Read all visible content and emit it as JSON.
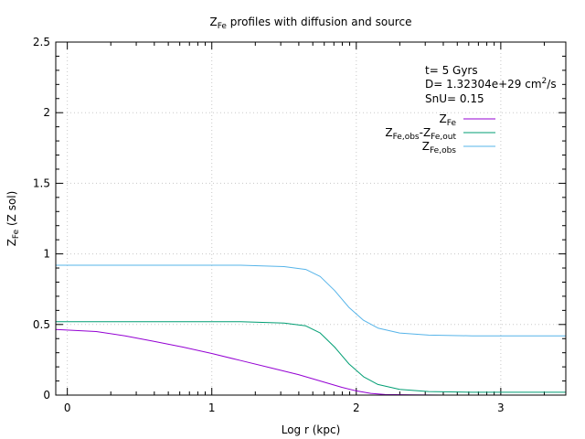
{
  "chart_data": {
    "type": "line",
    "title": {
      "main": "Z",
      "sub": "Fe",
      "rest": " profiles with diffusion and source"
    },
    "xlabel": "Log r (kpc)",
    "ylabel": {
      "main": "Z",
      "sub": "Fe",
      "rest": " (Z sol)"
    },
    "xlim": [
      -0.08,
      3.45
    ],
    "ylim": [
      0,
      2.5
    ],
    "grid": true,
    "x_ticks": [
      0,
      1,
      2,
      3
    ],
    "x_tick_labels": [
      "0",
      "1",
      "2",
      "3"
    ],
    "y_ticks": [
      0,
      0.5,
      1,
      1.5,
      2,
      2.5
    ],
    "y_tick_labels": [
      "0",
      "0.5",
      "1",
      "1.5",
      "2",
      "2.5"
    ],
    "annotations": {
      "time": "t= 5 Gyrs",
      "diffusion_prefix": "D= 1.32304e+29 cm",
      "diffusion_sup": "2",
      "diffusion_suffix": "/s",
      "snu": "SnU= 0.15"
    },
    "legend_position": "top-right",
    "series": [
      {
        "name": "Z_Fe",
        "label_parts": [
          {
            "t": "Z",
            "s": "n"
          },
          {
            "t": "Fe",
            "s": "sub"
          }
        ],
        "color": "#9400d3",
        "x": [
          -0.08,
          0.2,
          0.4,
          0.6,
          0.8,
          1.0,
          1.2,
          1.4,
          1.6,
          1.8,
          1.9,
          2.0,
          2.1,
          2.2,
          2.4,
          2.6,
          3.0,
          3.45
        ],
        "y": [
          0.465,
          0.45,
          0.42,
          0.38,
          0.34,
          0.295,
          0.245,
          0.195,
          0.145,
          0.085,
          0.055,
          0.03,
          0.012,
          0.004,
          0.001,
          0.0,
          0.0,
          0.0
        ]
      },
      {
        "name": "Z_Fe,obs-Z_Fe,out",
        "label_parts": [
          {
            "t": "Z",
            "s": "n"
          },
          {
            "t": "Fe,obs",
            "s": "sub"
          },
          {
            "t": "-Z",
            "s": "n"
          },
          {
            "t": "Fe,out",
            "s": "sub"
          }
        ],
        "color": "#009e73",
        "x": [
          -0.08,
          0.4,
          0.8,
          1.2,
          1.5,
          1.65,
          1.75,
          1.85,
          1.95,
          2.05,
          2.15,
          2.3,
          2.5,
          2.8,
          3.2,
          3.45
        ],
        "y": [
          0.52,
          0.52,
          0.52,
          0.52,
          0.51,
          0.49,
          0.44,
          0.34,
          0.22,
          0.13,
          0.075,
          0.04,
          0.025,
          0.02,
          0.02,
          0.02
        ]
      },
      {
        "name": "Z_Fe,obs",
        "label_parts": [
          {
            "t": "Z",
            "s": "n"
          },
          {
            "t": "Fe,obs",
            "s": "sub"
          }
        ],
        "color": "#56b4e9",
        "x": [
          -0.08,
          0.4,
          0.8,
          1.2,
          1.5,
          1.65,
          1.75,
          1.85,
          1.95,
          2.05,
          2.15,
          2.3,
          2.5,
          2.8,
          3.2,
          3.45
        ],
        "y": [
          0.92,
          0.92,
          0.92,
          0.92,
          0.91,
          0.89,
          0.84,
          0.74,
          0.62,
          0.53,
          0.475,
          0.44,
          0.425,
          0.42,
          0.42,
          0.42
        ]
      }
    ]
  }
}
